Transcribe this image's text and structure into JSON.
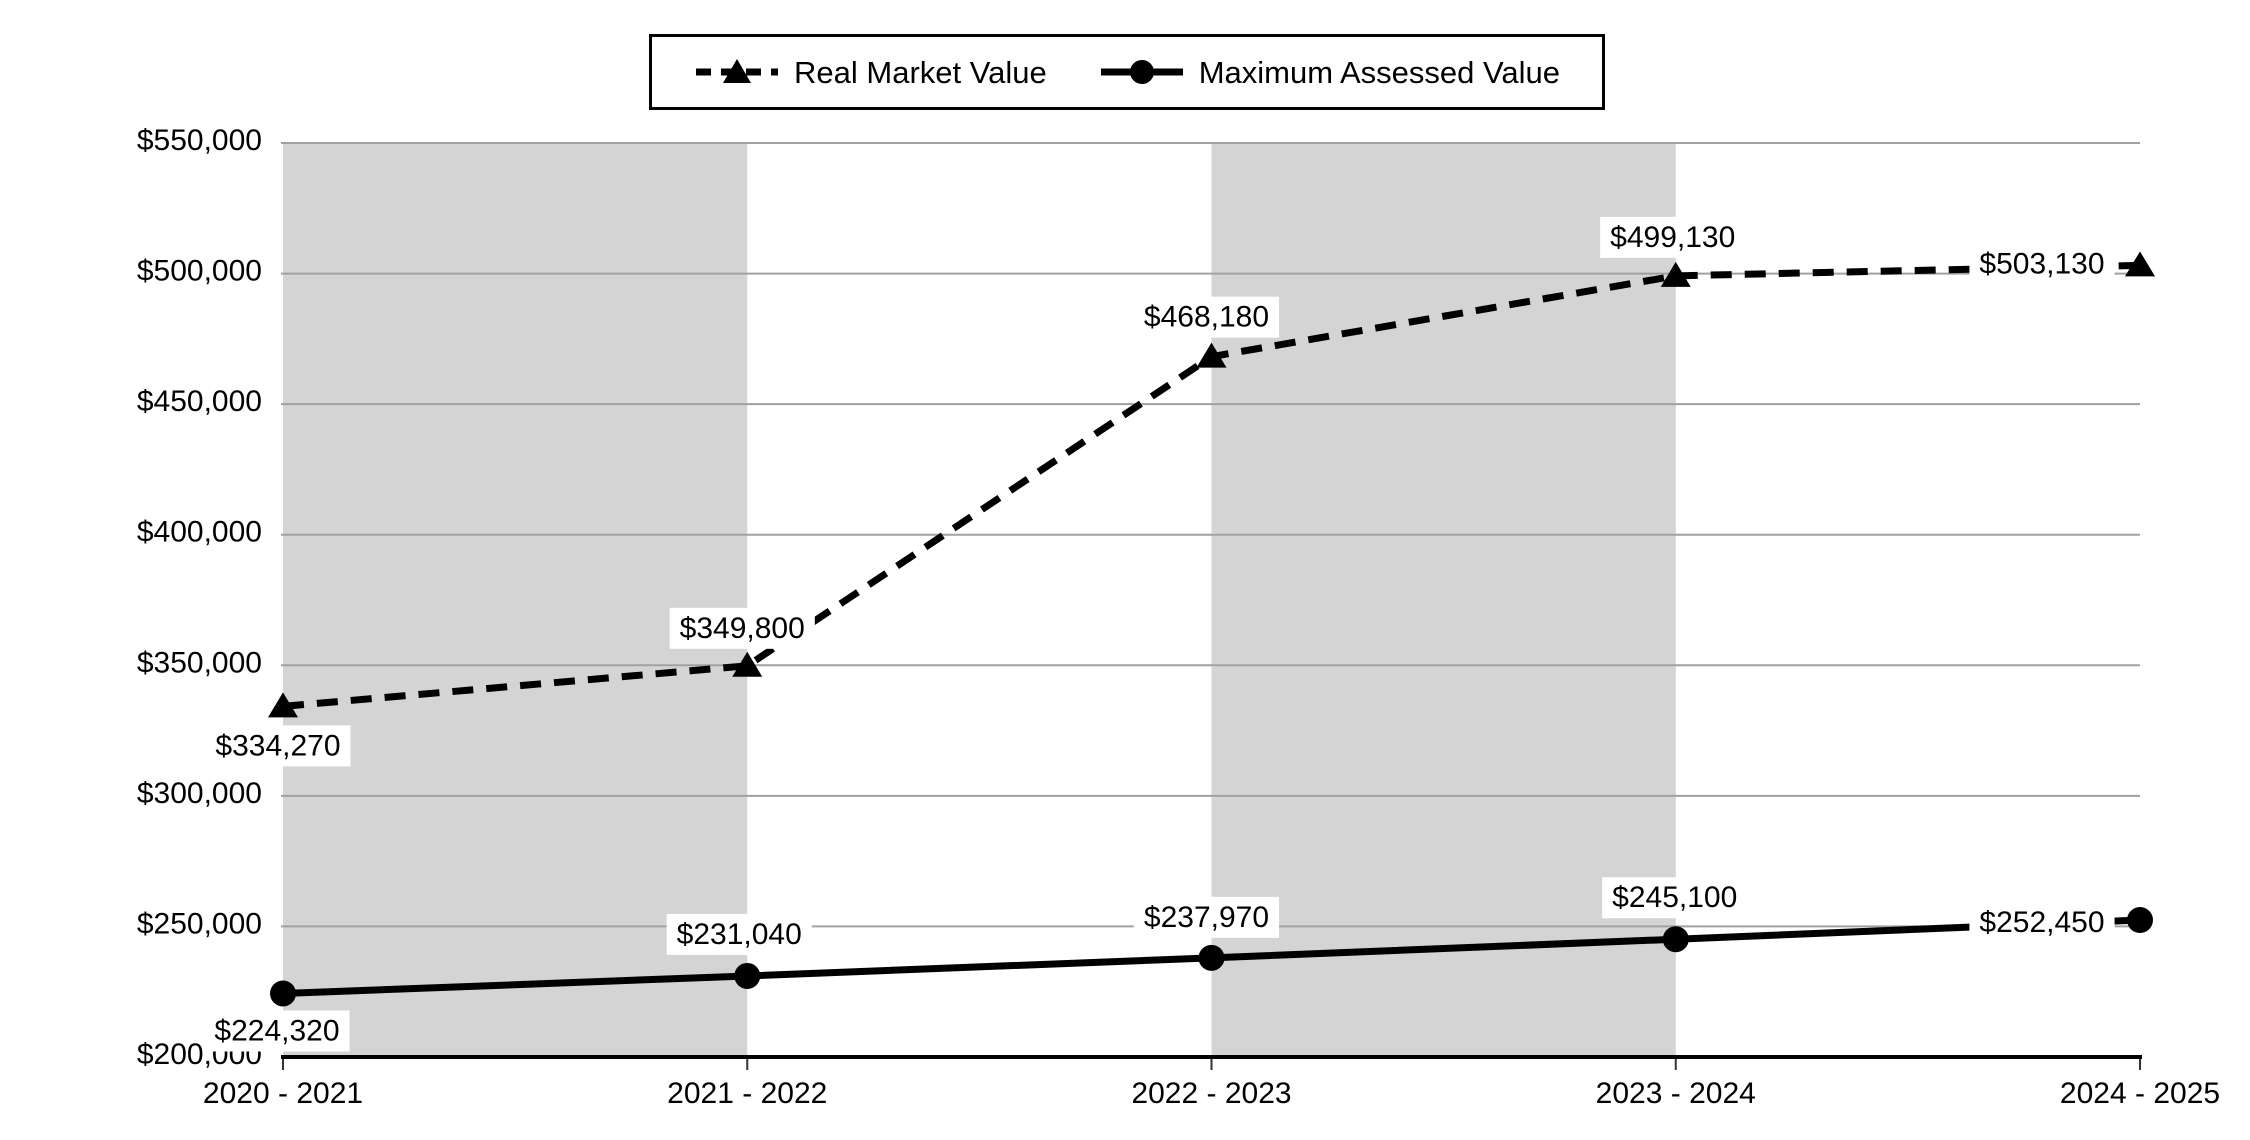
{
  "chart_data": {
    "type": "line",
    "title": "",
    "categories": [
      "2020 - 2021",
      "2021 - 2022",
      "2022 - 2023",
      "2023 - 2024",
      "2024 - 2025"
    ],
    "series": [
      {
        "name": "Real Market Value",
        "line_style": "dashed",
        "marker": "triangle",
        "color": "#000000",
        "values": [
          334270,
          349800,
          468180,
          499130,
          503130
        ],
        "labels": [
          "$334,270",
          "$349,800",
          "$468,180",
          "$499,130",
          "$503,130"
        ]
      },
      {
        "name": "Maximum Assessed Value",
        "line_style": "solid",
        "marker": "circle",
        "color": "#000000",
        "values": [
          224320,
          231040,
          237970,
          245100,
          252450
        ],
        "labels": [
          "$224,320",
          "$231,040",
          "$237,970",
          "$245,100",
          "$252,450"
        ]
      }
    ],
    "ylim": [
      200000,
      550000
    ],
    "ytick_step": 50000,
    "ytick_labels": [
      "$200,000",
      "$250,000",
      "$300,000",
      "$350,000",
      "$400,000",
      "$450,000",
      "$500,000",
      "$550,000"
    ],
    "xlabel": "",
    "ylabel": "",
    "grid": "horizontal",
    "legend_position": "top",
    "shaded_column_bands": [
      [
        0,
        1
      ],
      [
        2,
        3
      ]
    ],
    "colors": {
      "band": "#D4D4D4",
      "gridline": "#A1A1A1",
      "axis": "#000000",
      "tick": "#333333",
      "text": "#000000",
      "label_background": "#FFFFFF",
      "plot_background": "#FFFFFF",
      "legend_border": "#000000"
    }
  }
}
